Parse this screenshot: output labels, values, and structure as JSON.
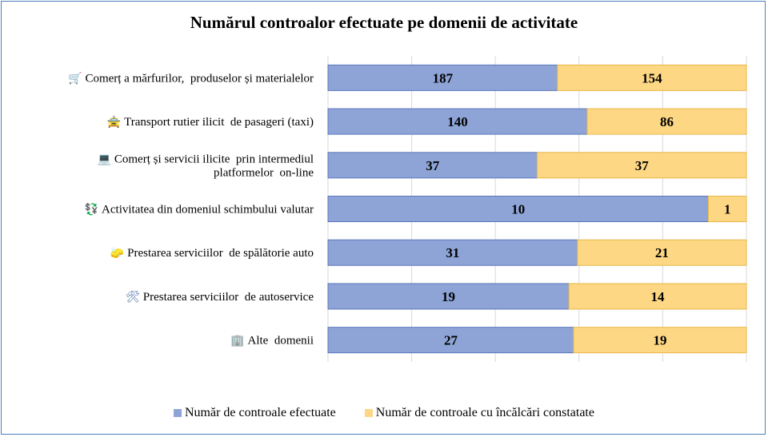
{
  "colors": {
    "series1": "#8ea4d6",
    "series1_border": "#5b78be",
    "series2": "#fdd783",
    "series2_border": "#e8b84a",
    "grid": "#d9d9d9"
  },
  "chart_data": {
    "type": "bar",
    "orientation": "horizontal",
    "stacked": "percent",
    "title": "Numărul controalor efectuate pe domenii de activitate",
    "categories": [
      {
        "icon": "🛒",
        "icon_name": "shopping-cart-icon",
        "lines": [
          "Comerț a mărfurilor,  produselor și materialelor"
        ]
      },
      {
        "icon": "🚖",
        "icon_name": "taxi-icon",
        "lines": [
          "Transport rutier ilicit  de pasageri (taxi)"
        ]
      },
      {
        "icon": "💻",
        "icon_name": "laptop-icon",
        "lines": [
          "Comerț și servicii ilicite  prin intermediul",
          "platformelor  on-line"
        ]
      },
      {
        "icon": "💱",
        "icon_name": "currency-exchange-icon",
        "lines": [
          "Activitatea din domeniul schimbului valutar"
        ]
      },
      {
        "icon": "🧽",
        "icon_name": "sponge-icon",
        "lines": [
          "Prestarea serviciilor  de spălătorie auto"
        ]
      },
      {
        "icon": "🛠",
        "icon_name": "tools-icon",
        "lines": [
          "Prestarea serviciilor  de autoservice"
        ]
      },
      {
        "icon": "🏢",
        "icon_name": "building-icon",
        "lines": [
          "Alte  domenii"
        ]
      }
    ],
    "series": [
      {
        "name": "Număr de controale efectuate",
        "values": [
          187,
          140,
          37,
          10,
          31,
          19,
          27
        ]
      },
      {
        "name": "Număr de controale cu încălcări constatate",
        "values": [
          154,
          86,
          37,
          1,
          21,
          14,
          19
        ]
      }
    ],
    "xlim": [
      0,
      100
    ],
    "grid": true,
    "legend_position": "bottom"
  }
}
